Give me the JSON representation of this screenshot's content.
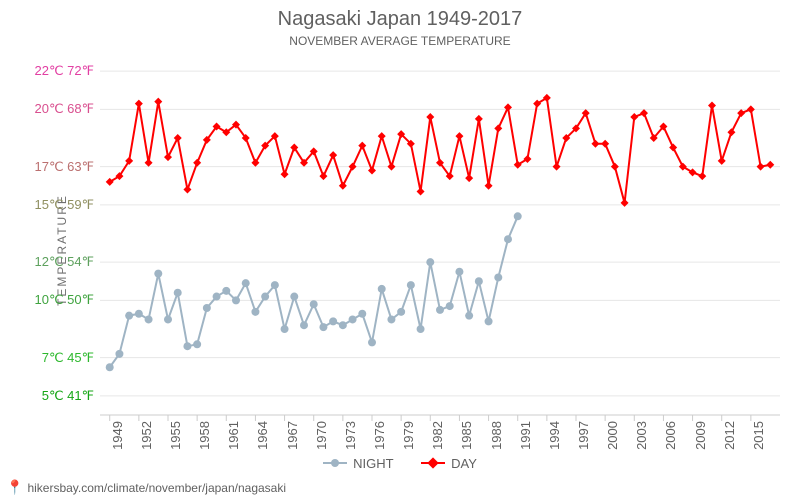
{
  "chart": {
    "title": "Nagasaki Japan 1949-2017",
    "subtitle": "NOVEMBER AVERAGE TEMPERATURE",
    "y_axis_title": "TEMPERATURE",
    "background_color": "#ffffff",
    "grid_color": "#e6e6e6",
    "plot_border_color": "#e6e6e6",
    "title_fontsize": 20,
    "subtitle_fontsize": 12,
    "tick_fontsize": 13,
    "x": {
      "min": 1948,
      "max": 2018,
      "ticks": [
        1949,
        1952,
        1955,
        1958,
        1961,
        1964,
        1967,
        1970,
        1973,
        1976,
        1979,
        1982,
        1985,
        1988,
        1991,
        1994,
        1997,
        2000,
        2003,
        2006,
        2009,
        2012,
        2015
      ],
      "tick_color": "#606060"
    },
    "y": {
      "min": 4,
      "max": 23,
      "ticks": [
        {
          "c": 5,
          "f": 41,
          "label": "5℃ 41℉",
          "color": "#15a615"
        },
        {
          "c": 7,
          "f": 45,
          "label": "7℃ 45℉",
          "color": "#2db82d"
        },
        {
          "c": 10,
          "f": 50,
          "label": "10℃ 50℉",
          "color": "#3fa33f"
        },
        {
          "c": 12,
          "f": 54,
          "label": "12℃ 54℉",
          "color": "#5ea15e"
        },
        {
          "c": 15,
          "f": 59,
          "label": "15℃ 59℉",
          "color": "#8f8f60"
        },
        {
          "c": 17,
          "f": 63,
          "label": "17℃ 63℉",
          "color": "#bb6f6f"
        },
        {
          "c": 20,
          "f": 68,
          "label": "20℃ 68℉",
          "color": "#d94f8f"
        },
        {
          "c": 22,
          "f": 72,
          "label": "22℃ 72℉",
          "color": "#e23fa3"
        }
      ]
    },
    "series": {
      "night": {
        "label": "NIGHT",
        "color": "#9fb4c4",
        "line_width": 2,
        "marker_size": 4,
        "data": [
          {
            "x": 1949,
            "y": 6.5
          },
          {
            "x": 1950,
            "y": 7.2
          },
          {
            "x": 1951,
            "y": 9.2
          },
          {
            "x": 1952,
            "y": 9.3
          },
          {
            "x": 1953,
            "y": 9.0
          },
          {
            "x": 1954,
            "y": 11.4
          },
          {
            "x": 1955,
            "y": 9.0
          },
          {
            "x": 1956,
            "y": 10.4
          },
          {
            "x": 1957,
            "y": 7.6
          },
          {
            "x": 1958,
            "y": 7.7
          },
          {
            "x": 1959,
            "y": 9.6
          },
          {
            "x": 1960,
            "y": 10.2
          },
          {
            "x": 1961,
            "y": 10.5
          },
          {
            "x": 1962,
            "y": 10.0
          },
          {
            "x": 1963,
            "y": 10.9
          },
          {
            "x": 1964,
            "y": 9.4
          },
          {
            "x": 1965,
            "y": 10.2
          },
          {
            "x": 1966,
            "y": 10.8
          },
          {
            "x": 1967,
            "y": 8.5
          },
          {
            "x": 1968,
            "y": 10.2
          },
          {
            "x": 1969,
            "y": 8.7
          },
          {
            "x": 1970,
            "y": 9.8
          },
          {
            "x": 1971,
            "y": 8.6
          },
          {
            "x": 1972,
            "y": 8.9
          },
          {
            "x": 1973,
            "y": 8.7
          },
          {
            "x": 1974,
            "y": 9.0
          },
          {
            "x": 1975,
            "y": 9.3
          },
          {
            "x": 1976,
            "y": 7.8
          },
          {
            "x": 1977,
            "y": 10.6
          },
          {
            "x": 1978,
            "y": 9.0
          },
          {
            "x": 1979,
            "y": 9.4
          },
          {
            "x": 1980,
            "y": 10.8
          },
          {
            "x": 1981,
            "y": 8.5
          },
          {
            "x": 1982,
            "y": 12.0
          },
          {
            "x": 1983,
            "y": 9.5
          },
          {
            "x": 1984,
            "y": 9.7
          },
          {
            "x": 1985,
            "y": 11.5
          },
          {
            "x": 1986,
            "y": 9.2
          },
          {
            "x": 1987,
            "y": 11.0
          },
          {
            "x": 1988,
            "y": 8.9
          },
          {
            "x": 1989,
            "y": 11.2
          },
          {
            "x": 1990,
            "y": 13.2
          },
          {
            "x": 1991,
            "y": 14.4
          }
        ]
      },
      "day": {
        "label": "DAY",
        "color": "#ff0000",
        "line_width": 2,
        "marker_size": 4,
        "marker_shape": "diamond",
        "data": [
          {
            "x": 1949,
            "y": 16.2
          },
          {
            "x": 1950,
            "y": 16.5
          },
          {
            "x": 1951,
            "y": 17.3
          },
          {
            "x": 1952,
            "y": 20.3
          },
          {
            "x": 1953,
            "y": 17.2
          },
          {
            "x": 1954,
            "y": 20.4
          },
          {
            "x": 1955,
            "y": 17.5
          },
          {
            "x": 1956,
            "y": 18.5
          },
          {
            "x": 1957,
            "y": 15.8
          },
          {
            "x": 1958,
            "y": 17.2
          },
          {
            "x": 1959,
            "y": 18.4
          },
          {
            "x": 1960,
            "y": 19.1
          },
          {
            "x": 1961,
            "y": 18.8
          },
          {
            "x": 1962,
            "y": 19.2
          },
          {
            "x": 1963,
            "y": 18.5
          },
          {
            "x": 1964,
            "y": 17.2
          },
          {
            "x": 1965,
            "y": 18.1
          },
          {
            "x": 1966,
            "y": 18.6
          },
          {
            "x": 1967,
            "y": 16.6
          },
          {
            "x": 1968,
            "y": 18.0
          },
          {
            "x": 1969,
            "y": 17.2
          },
          {
            "x": 1970,
            "y": 17.8
          },
          {
            "x": 1971,
            "y": 16.5
          },
          {
            "x": 1972,
            "y": 17.6
          },
          {
            "x": 1973,
            "y": 16.0
          },
          {
            "x": 1974,
            "y": 17.0
          },
          {
            "x": 1975,
            "y": 18.1
          },
          {
            "x": 1976,
            "y": 16.8
          },
          {
            "x": 1977,
            "y": 18.6
          },
          {
            "x": 1978,
            "y": 17.0
          },
          {
            "x": 1979,
            "y": 18.7
          },
          {
            "x": 1980,
            "y": 18.2
          },
          {
            "x": 1981,
            "y": 15.7
          },
          {
            "x": 1982,
            "y": 19.6
          },
          {
            "x": 1983,
            "y": 17.2
          },
          {
            "x": 1984,
            "y": 16.5
          },
          {
            "x": 1985,
            "y": 18.6
          },
          {
            "x": 1986,
            "y": 16.4
          },
          {
            "x": 1987,
            "y": 19.5
          },
          {
            "x": 1988,
            "y": 16.0
          },
          {
            "x": 1989,
            "y": 19.0
          },
          {
            "x": 1990,
            "y": 20.1
          },
          {
            "x": 1991,
            "y": 17.1
          },
          {
            "x": 1992,
            "y": 17.4
          },
          {
            "x": 1993,
            "y": 20.3
          },
          {
            "x": 1994,
            "y": 20.6
          },
          {
            "x": 1995,
            "y": 17.0
          },
          {
            "x": 1996,
            "y": 18.5
          },
          {
            "x": 1997,
            "y": 19.0
          },
          {
            "x": 1998,
            "y": 19.8
          },
          {
            "x": 1999,
            "y": 18.2
          },
          {
            "x": 2000,
            "y": 18.2
          },
          {
            "x": 2001,
            "y": 17.0
          },
          {
            "x": 2002,
            "y": 15.1
          },
          {
            "x": 2003,
            "y": 19.6
          },
          {
            "x": 2004,
            "y": 19.8
          },
          {
            "x": 2005,
            "y": 18.5
          },
          {
            "x": 2006,
            "y": 19.1
          },
          {
            "x": 2007,
            "y": 18.0
          },
          {
            "x": 2008,
            "y": 17.0
          },
          {
            "x": 2009,
            "y": 16.7
          },
          {
            "x": 2010,
            "y": 16.5
          },
          {
            "x": 2011,
            "y": 20.2
          },
          {
            "x": 2012,
            "y": 17.3
          },
          {
            "x": 2013,
            "y": 18.8
          },
          {
            "x": 2014,
            "y": 19.8
          },
          {
            "x": 2015,
            "y": 20.0
          },
          {
            "x": 2016,
            "y": 17.0
          },
          {
            "x": 2017,
            "y": 17.1
          }
        ]
      }
    },
    "footer": {
      "icon": "📍",
      "text": "hikersbay.com/climate/november/japan/nagasaki",
      "text_color": "#606060",
      "icon_color": "#ff3333"
    }
  }
}
